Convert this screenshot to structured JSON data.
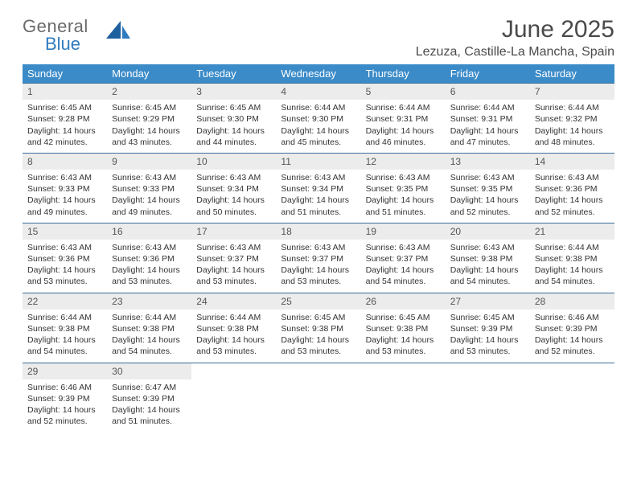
{
  "brand": {
    "general": "General",
    "blue": "Blue"
  },
  "title": "June 2025",
  "location": "Lezuza, Castille-La Mancha, Spain",
  "colors": {
    "header_bg": "#3b8bc8",
    "header_text": "#ffffff",
    "daynum_bg": "#ececec",
    "week_border": "#3b6d99",
    "text": "#333333",
    "brand_gray": "#6a6a6a",
    "brand_blue": "#2f7bbf"
  },
  "typography": {
    "title_fontsize": 30,
    "location_fontsize": 16,
    "weekday_fontsize": 13,
    "daynum_fontsize": 12,
    "body_fontsize": 10.5
  },
  "weekdays": [
    "Sunday",
    "Monday",
    "Tuesday",
    "Wednesday",
    "Thursday",
    "Friday",
    "Saturday"
  ],
  "weeks": [
    [
      {
        "n": "1",
        "sunrise": "6:45 AM",
        "sunset": "9:28 PM",
        "daylight": "14 hours and 42 minutes."
      },
      {
        "n": "2",
        "sunrise": "6:45 AM",
        "sunset": "9:29 PM",
        "daylight": "14 hours and 43 minutes."
      },
      {
        "n": "3",
        "sunrise": "6:45 AM",
        "sunset": "9:30 PM",
        "daylight": "14 hours and 44 minutes."
      },
      {
        "n": "4",
        "sunrise": "6:44 AM",
        "sunset": "9:30 PM",
        "daylight": "14 hours and 45 minutes."
      },
      {
        "n": "5",
        "sunrise": "6:44 AM",
        "sunset": "9:31 PM",
        "daylight": "14 hours and 46 minutes."
      },
      {
        "n": "6",
        "sunrise": "6:44 AM",
        "sunset": "9:31 PM",
        "daylight": "14 hours and 47 minutes."
      },
      {
        "n": "7",
        "sunrise": "6:44 AM",
        "sunset": "9:32 PM",
        "daylight": "14 hours and 48 minutes."
      }
    ],
    [
      {
        "n": "8",
        "sunrise": "6:43 AM",
        "sunset": "9:33 PM",
        "daylight": "14 hours and 49 minutes."
      },
      {
        "n": "9",
        "sunrise": "6:43 AM",
        "sunset": "9:33 PM",
        "daylight": "14 hours and 49 minutes."
      },
      {
        "n": "10",
        "sunrise": "6:43 AM",
        "sunset": "9:34 PM",
        "daylight": "14 hours and 50 minutes."
      },
      {
        "n": "11",
        "sunrise": "6:43 AM",
        "sunset": "9:34 PM",
        "daylight": "14 hours and 51 minutes."
      },
      {
        "n": "12",
        "sunrise": "6:43 AM",
        "sunset": "9:35 PM",
        "daylight": "14 hours and 51 minutes."
      },
      {
        "n": "13",
        "sunrise": "6:43 AM",
        "sunset": "9:35 PM",
        "daylight": "14 hours and 52 minutes."
      },
      {
        "n": "14",
        "sunrise": "6:43 AM",
        "sunset": "9:36 PM",
        "daylight": "14 hours and 52 minutes."
      }
    ],
    [
      {
        "n": "15",
        "sunrise": "6:43 AM",
        "sunset": "9:36 PM",
        "daylight": "14 hours and 53 minutes."
      },
      {
        "n": "16",
        "sunrise": "6:43 AM",
        "sunset": "9:36 PM",
        "daylight": "14 hours and 53 minutes."
      },
      {
        "n": "17",
        "sunrise": "6:43 AM",
        "sunset": "9:37 PM",
        "daylight": "14 hours and 53 minutes."
      },
      {
        "n": "18",
        "sunrise": "6:43 AM",
        "sunset": "9:37 PM",
        "daylight": "14 hours and 53 minutes."
      },
      {
        "n": "19",
        "sunrise": "6:43 AM",
        "sunset": "9:37 PM",
        "daylight": "14 hours and 54 minutes."
      },
      {
        "n": "20",
        "sunrise": "6:43 AM",
        "sunset": "9:38 PM",
        "daylight": "14 hours and 54 minutes."
      },
      {
        "n": "21",
        "sunrise": "6:44 AM",
        "sunset": "9:38 PM",
        "daylight": "14 hours and 54 minutes."
      }
    ],
    [
      {
        "n": "22",
        "sunrise": "6:44 AM",
        "sunset": "9:38 PM",
        "daylight": "14 hours and 54 minutes."
      },
      {
        "n": "23",
        "sunrise": "6:44 AM",
        "sunset": "9:38 PM",
        "daylight": "14 hours and 54 minutes."
      },
      {
        "n": "24",
        "sunrise": "6:44 AM",
        "sunset": "9:38 PM",
        "daylight": "14 hours and 53 minutes."
      },
      {
        "n": "25",
        "sunrise": "6:45 AM",
        "sunset": "9:38 PM",
        "daylight": "14 hours and 53 minutes."
      },
      {
        "n": "26",
        "sunrise": "6:45 AM",
        "sunset": "9:38 PM",
        "daylight": "14 hours and 53 minutes."
      },
      {
        "n": "27",
        "sunrise": "6:45 AM",
        "sunset": "9:39 PM",
        "daylight": "14 hours and 53 minutes."
      },
      {
        "n": "28",
        "sunrise": "6:46 AM",
        "sunset": "9:39 PM",
        "daylight": "14 hours and 52 minutes."
      }
    ],
    [
      {
        "n": "29",
        "sunrise": "6:46 AM",
        "sunset": "9:39 PM",
        "daylight": "14 hours and 52 minutes."
      },
      {
        "n": "30",
        "sunrise": "6:47 AM",
        "sunset": "9:39 PM",
        "daylight": "14 hours and 51 minutes."
      },
      null,
      null,
      null,
      null,
      null
    ]
  ],
  "labels": {
    "sunrise_prefix": "Sunrise: ",
    "sunset_prefix": "Sunset: ",
    "daylight_prefix": "Daylight: "
  }
}
